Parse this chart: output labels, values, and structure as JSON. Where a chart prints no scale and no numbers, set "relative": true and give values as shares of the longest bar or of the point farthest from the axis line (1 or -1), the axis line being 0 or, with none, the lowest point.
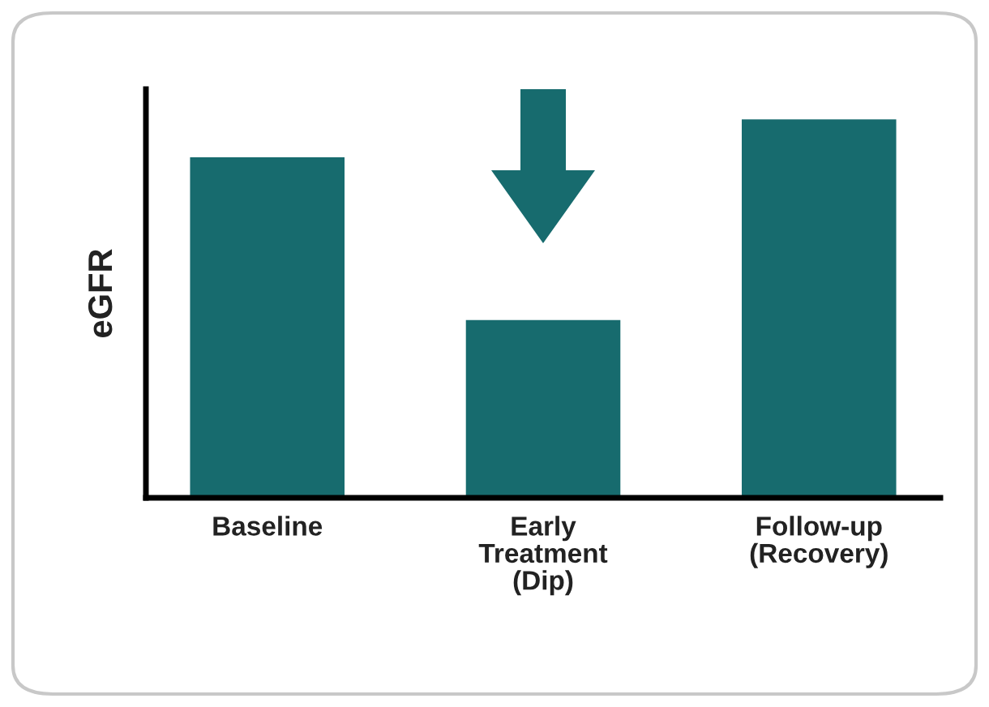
{
  "chart_data": {
    "type": "bar",
    "relative": true,
    "ylabel": "eGFR",
    "categories": [
      "Baseline",
      "Early\nTreatment\n(Dip)",
      "Follow-up\n(Recovery)"
    ],
    "values": [
      0.9,
      0.47,
      1
    ],
    "color": "#176b6e",
    "grid": false,
    "legend": false
  }
}
